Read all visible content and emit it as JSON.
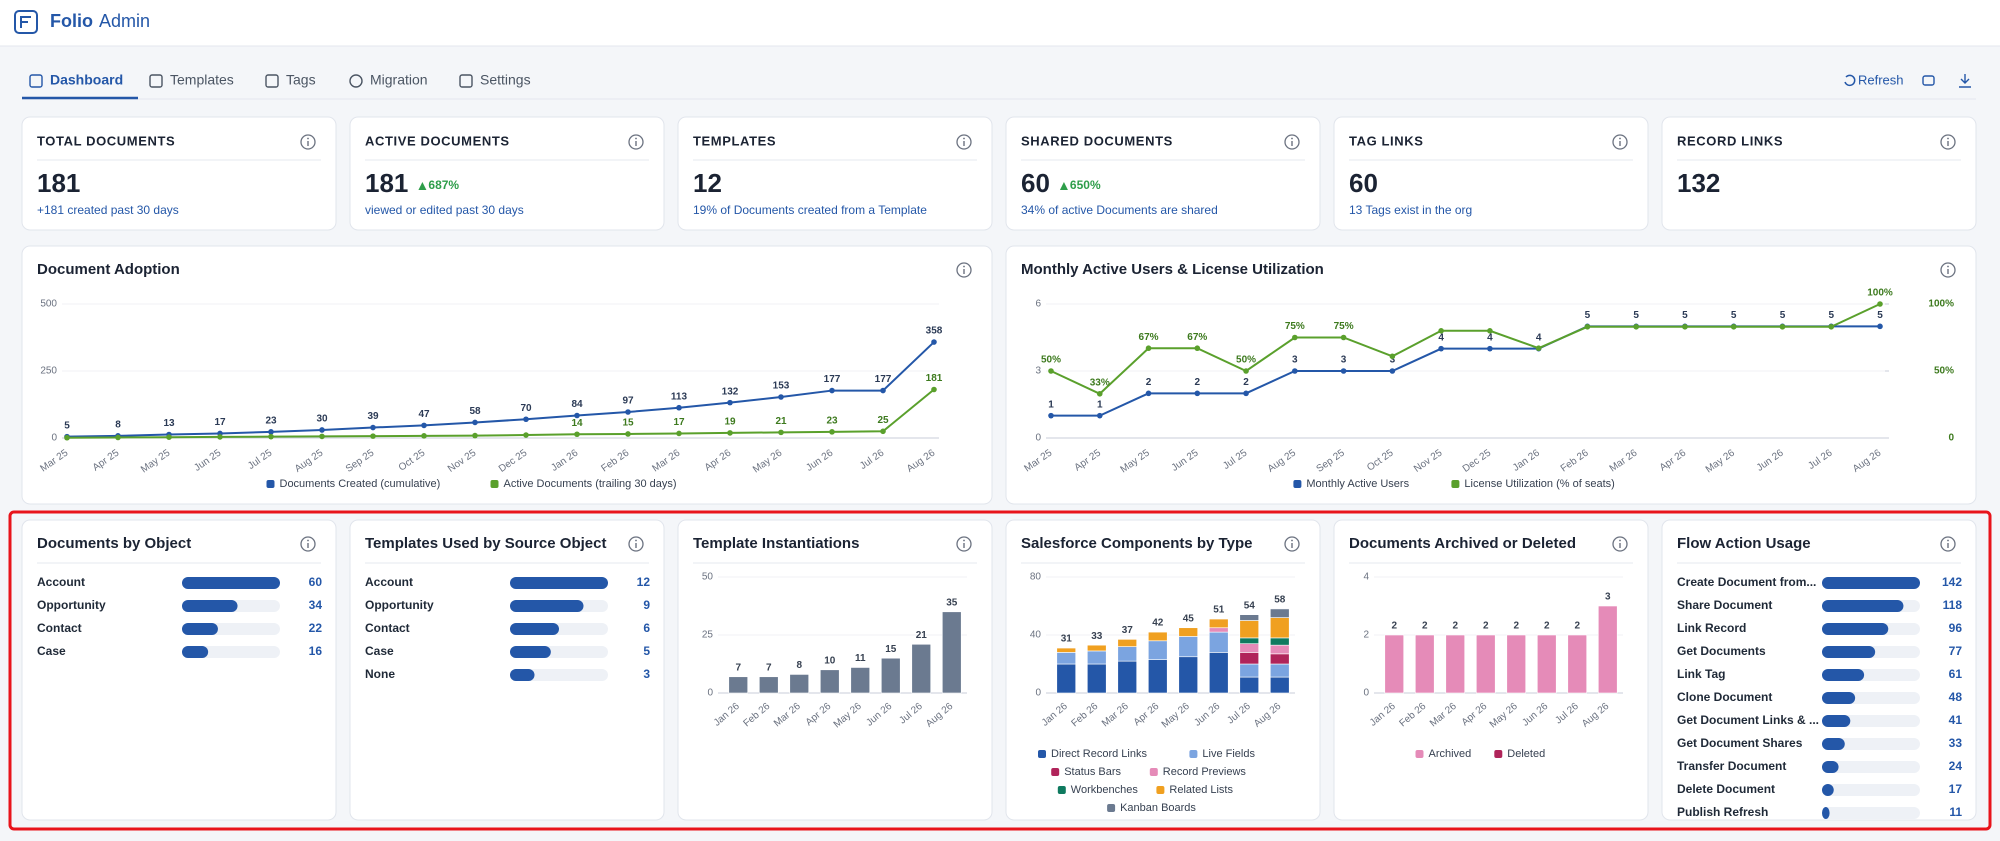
{
  "header": {
    "product": "Folio",
    "app": "Admin"
  },
  "tabs": [
    "Dashboard",
    "Templates",
    "Tags",
    "Migration",
    "Settings"
  ],
  "actions": {
    "refresh": "Refresh"
  },
  "kpis": [
    {
      "label": "TOTAL DOCUMENTS",
      "value": 181,
      "note": "+181 created past 30 days"
    },
    {
      "label": "ACTIVE DOCUMENTS",
      "value": 181,
      "delta": "687%",
      "note": "viewed or edited past 30 days"
    },
    {
      "label": "TEMPLATES",
      "value": 12,
      "note": "19% of Documents created from a Template"
    },
    {
      "label": "SHARED DOCUMENTS",
      "value": 60,
      "delta": "650%",
      "note": "34% of active Documents are shared"
    },
    {
      "label": "TAG LINKS",
      "value": 60,
      "note": "13 Tags exist in the org"
    },
    {
      "label": "RECORD LINKS",
      "value": 132
    }
  ],
  "charts": [
    {
      "type": "line",
      "title": "Document Adoption",
      "categories": [
        "Mar 25",
        "Apr 25",
        "May 25",
        "Jun 25",
        "Jul 25",
        "Aug 25",
        "Sep 25",
        "Oct 25",
        "Nov 25",
        "Dec 25",
        "Jan 26",
        "Feb 26",
        "Mar 26",
        "Apr 26",
        "May 26",
        "Jun 26",
        "Jul 26",
        "Aug 26"
      ],
      "ylim": [
        0,
        500
      ],
      "yticks": [
        0,
        250,
        500
      ],
      "series": [
        {
          "name": "Documents Created (cumulative)",
          "color": "#2457a8",
          "values": [
            5,
            8,
            13,
            17,
            23,
            30,
            39,
            47,
            58,
            70,
            84,
            97,
            113,
            132,
            153,
            177,
            177,
            358
          ]
        },
        {
          "name": "Active Documents (trailing 30 days)",
          "color": "#5aa02c",
          "values": [
            1,
            2,
            3,
            4,
            5,
            6,
            7,
            8,
            9,
            11,
            14,
            15,
            17,
            19,
            21,
            23,
            25,
            181
          ],
          "value_labels": [
            null,
            null,
            null,
            null,
            null,
            null,
            null,
            null,
            null,
            null,
            "14",
            "15",
            "17",
            "19",
            "21",
            "23",
            "25",
            "181"
          ]
        }
      ]
    },
    {
      "type": "line",
      "title": "Monthly Active Users & License Utilization",
      "categories": [
        "Mar 25",
        "Apr 25",
        "May 25",
        "Jun 25",
        "Jul 25",
        "Aug 25",
        "Sep 25",
        "Oct 25",
        "Nov 25",
        "Dec 25",
        "Jan 26",
        "Feb 26",
        "Mar 26",
        "Apr 26",
        "May 26",
        "Jun 26",
        "Jul 26",
        "Aug 26"
      ],
      "ylim": [
        0,
        6
      ],
      "yticks": [
        0,
        3,
        6
      ],
      "y2lim": [
        0,
        100
      ],
      "y2ticks": [
        0,
        {
          "value": 50,
          "label": "50%"
        },
        {
          "value": 100,
          "label": "100%"
        }
      ],
      "series": [
        {
          "name": "Monthly Active Users",
          "color": "#2457a8",
          "values": [
            1,
            1,
            2,
            2,
            2,
            3,
            3,
            3,
            4,
            4,
            4,
            5,
            5,
            5,
            5,
            5,
            5,
            5
          ]
        },
        {
          "name": "License Utilization (% of seats)",
          "color": "#5aa02c",
          "axis": "y2",
          "values": [
            50,
            33,
            67,
            67,
            50,
            75,
            75,
            61,
            80,
            80,
            67,
            83,
            83,
            83,
            83,
            83,
            83,
            100
          ],
          "value_labels": [
            "50%",
            "33%",
            "67%",
            "67%",
            "50%",
            "75%",
            "75%",
            null,
            null,
            null,
            null,
            null,
            null,
            null,
            null,
            null,
            null,
            "100%"
          ]
        }
      ]
    },
    {
      "type": "hbar",
      "title": "Documents by Object",
      "color": "#2457a8",
      "xlim": [
        0,
        60
      ],
      "categories": [
        "Account",
        "Opportunity",
        "Contact",
        "Case"
      ],
      "values": [
        60,
        34,
        22,
        16
      ]
    },
    {
      "type": "hbar",
      "title": "Templates Used by Source Object",
      "color": "#2457a8",
      "xlim": [
        0,
        12
      ],
      "categories": [
        "Account",
        "Opportunity",
        "Contact",
        "Case",
        "None"
      ],
      "values": [
        12,
        9,
        6,
        5,
        3
      ]
    },
    {
      "type": "stacked",
      "title": "Template Instantiations",
      "categories": [
        "Jan 26",
        "Feb 26",
        "Mar 26",
        "Apr 26",
        "May 26",
        "Jun 26",
        "Jul 26",
        "Aug 26"
      ],
      "ylim": [
        0,
        50
      ],
      "yticks": [
        0,
        25,
        50
      ],
      "series": [
        {
          "color": "#6b7a90",
          "values": [
            7,
            7,
            8,
            10,
            11,
            15,
            21,
            35
          ]
        }
      ]
    },
    {
      "type": "stacked",
      "title": "Salesforce Components by Type",
      "categories": [
        "Jan 26",
        "Feb 26",
        "Mar 26",
        "Apr 26",
        "May 26",
        "Jun 26",
        "Jul 26",
        "Aug 26"
      ],
      "ylim": [
        0,
        80
      ],
      "yticks": [
        0,
        40,
        80
      ],
      "totals": [
        31,
        33,
        37,
        42,
        45,
        51,
        54,
        58
      ],
      "series": [
        {
          "name": "Direct Record Links",
          "color": "#2457a8",
          "values": [
            20,
            20,
            22,
            23,
            25,
            28,
            11,
            11
          ]
        },
        {
          "name": "Live Fields",
          "color": "#7ba4e0",
          "values": [
            8,
            9,
            10,
            13,
            14,
            14,
            9,
            9
          ]
        },
        {
          "name": "Status Bars",
          "color": "#b0245a",
          "values": [
            0,
            0,
            0,
            0,
            0,
            0,
            8,
            7
          ]
        },
        {
          "name": "Record Previews",
          "color": "#e58bb8",
          "values": [
            0,
            0,
            0,
            0,
            0,
            3,
            6,
            6
          ]
        },
        {
          "name": "Workbenches",
          "color": "#0f7a5f",
          "values": [
            0,
            0,
            0,
            0,
            0,
            0,
            4,
            5
          ]
        },
        {
          "name": "Related Lists",
          "color": "#f0a020",
          "values": [
            3,
            4,
            5,
            6,
            6,
            6,
            12,
            14
          ]
        },
        {
          "name": "Kanban Boards",
          "color": "#6b7a90",
          "values": [
            0,
            0,
            0,
            0,
            0,
            0,
            4,
            6
          ]
        }
      ]
    },
    {
      "type": "stacked",
      "title": "Documents Archived or Deleted",
      "categories": [
        "Jan 26",
        "Feb 26",
        "Mar 26",
        "Apr 26",
        "May 26",
        "Jun 26",
        "Jul 26",
        "Aug 26"
      ],
      "ylim": [
        0,
        4
      ],
      "yticks": [
        0,
        2,
        4
      ],
      "series": [
        {
          "name": "Archived",
          "color": "#e58bb8",
          "values": [
            2,
            2,
            2,
            2,
            2,
            2,
            2,
            3
          ]
        },
        {
          "name": "Deleted",
          "color": "#b0245a",
          "values": [
            0,
            0,
            0,
            0,
            0,
            0,
            0,
            0
          ]
        }
      ]
    },
    {
      "type": "hbar",
      "title": "Flow Action Usage",
      "color": "#2457a8",
      "xlim": [
        0,
        142
      ],
      "categories": [
        "Create Document from...",
        "Share Document",
        "Link Record",
        "Get Documents",
        "Link Tag",
        "Clone Document",
        "Get Document Links & ...",
        "Get Document Shares",
        "Transfer Document",
        "Delete Document",
        "Publish Refresh"
      ],
      "values": [
        142,
        118,
        96,
        77,
        61,
        48,
        41,
        33,
        24,
        17,
        11
      ]
    }
  ]
}
